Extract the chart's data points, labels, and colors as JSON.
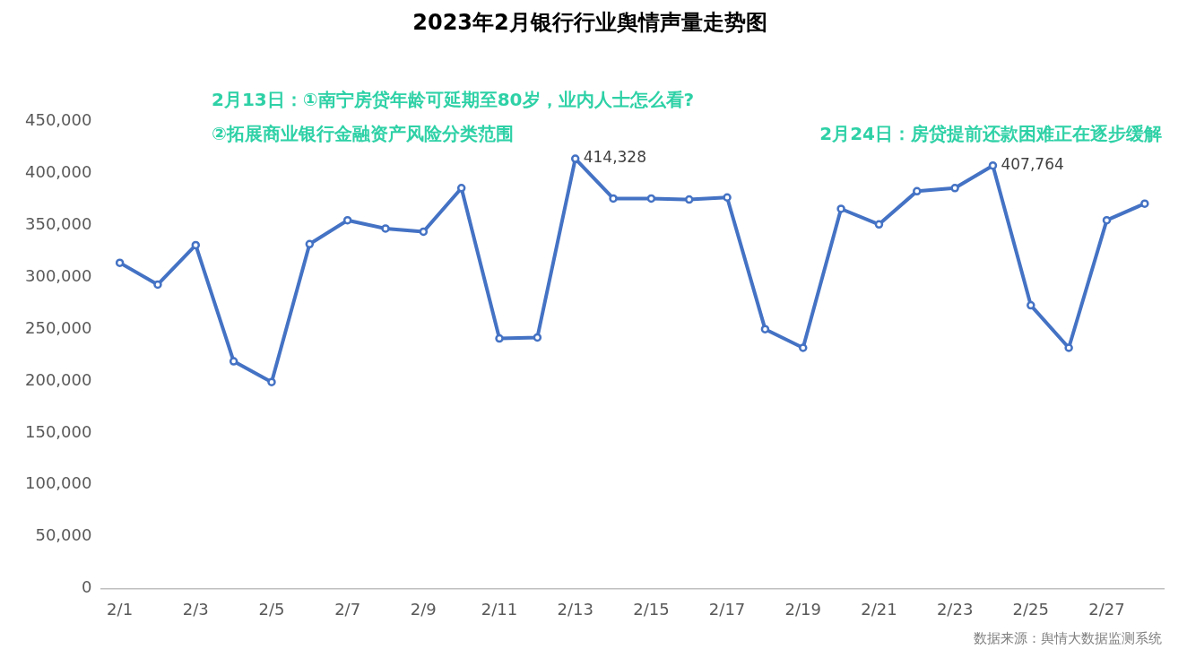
{
  "chart_data": {
    "type": "line",
    "title": "2023年2月银行行业舆情声量走势图",
    "categories": [
      "2/1",
      null,
      "2/3",
      null,
      "2/5",
      null,
      "2/7",
      null,
      "2/9",
      null,
      "2/11",
      null,
      "2/13",
      null,
      "2/15",
      null,
      "2/17",
      null,
      "2/19",
      null,
      "2/21",
      null,
      "2/23",
      null,
      "2/25",
      null,
      "2/27",
      null
    ],
    "series": [
      {
        "color": "#4472c4",
        "values": [
          314000,
          293000,
          331000,
          219000,
          199000,
          332000,
          355000,
          347000,
          344000,
          386000,
          241000,
          242000,
          414328,
          376000,
          376000,
          375000,
          377000,
          250000,
          232000,
          366000,
          351000,
          383000,
          386000,
          407764,
          273000,
          232000,
          355000,
          371000
        ],
        "value_labels": [
          null,
          null,
          null,
          null,
          null,
          null,
          null,
          null,
          null,
          null,
          null,
          null,
          "414,328",
          null,
          null,
          null,
          null,
          null,
          null,
          null,
          null,
          null,
          null,
          "407,764",
          null,
          null,
          null,
          null
        ]
      }
    ],
    "ylim": [
      0,
      450000
    ],
    "yticks": [
      {
        "value": 0,
        "label": "0"
      },
      {
        "value": 50000,
        "label": "50,000"
      },
      {
        "value": 100000,
        "label": "100,000"
      },
      {
        "value": 150000,
        "label": "150,000"
      },
      {
        "value": 200000,
        "label": "200,000"
      },
      {
        "value": 250000,
        "label": "250,000"
      },
      {
        "value": 300000,
        "label": "300,000"
      },
      {
        "value": 350000,
        "label": "350,000"
      },
      {
        "value": 400000,
        "label": "400,000"
      },
      {
        "value": 450000,
        "label": "450,000"
      }
    ],
    "grid": false,
    "legend": false,
    "marker": "circle",
    "line_style": "solid",
    "annotations": [
      "2月13日：①南宁房贷年龄可延期至80岁，业内人士怎么看?",
      "②拓展商业银行金融资产风险分类范围",
      "2月24日：房贷提前还款困难正在逐步缓解",
      "数据来源：舆情大数据监测系统"
    ]
  }
}
